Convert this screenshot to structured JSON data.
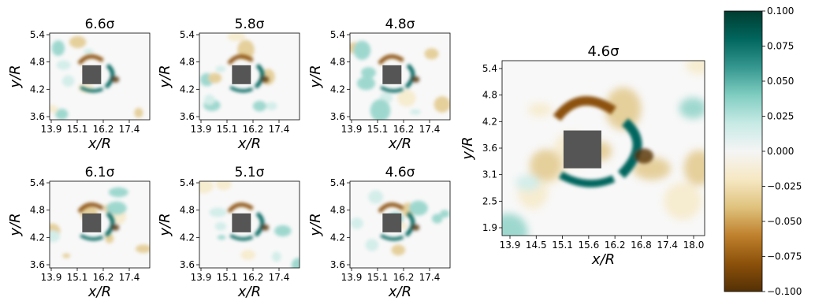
{
  "chart_data": {
    "type": "heatmap",
    "colorbar": {
      "min": -0.1,
      "max": 0.1,
      "ticks": [
        "0.100",
        "0.075",
        "0.050",
        "0.025",
        "0.000",
        "−0.025",
        "−0.050",
        "−0.075",
        "−0.100"
      ],
      "colors": [
        "#543005",
        "#8c510a",
        "#bf812d",
        "#dfc27d",
        "#f6e8c3",
        "#f5f5f5",
        "#c7eae5",
        "#80cdc1",
        "#35978f",
        "#01665e",
        "#003c30"
      ]
    },
    "small_panels": [
      {
        "title": "6.6σ",
        "xlabel": "x/R",
        "ylabel": "y/R",
        "xticks": [
          "13.9",
          "15.1",
          "16.2",
          "17.4"
        ],
        "yticks": [
          "5.4",
          "4.8",
          "4.2",
          "3.6"
        ],
        "xlim": [
          13.6,
          18.2
        ],
        "ylim": [
          3.5,
          5.5
        ]
      },
      {
        "title": "5.8σ",
        "xlabel": "x/R",
        "ylabel": "y/R",
        "xticks": [
          "13.9",
          "15.1",
          "16.2",
          "17.4"
        ],
        "yticks": [
          "5.4",
          "4.8",
          "4.2",
          "3.6"
        ],
        "xlim": [
          13.6,
          18.2
        ],
        "ylim": [
          3.5,
          5.5
        ]
      },
      {
        "title": "4.8σ",
        "xlabel": "x/R",
        "ylabel": "y/R",
        "xticks": [
          "13.9",
          "15.1",
          "16.2",
          "17.4"
        ],
        "yticks": [
          "5.4",
          "4.8",
          "4.2",
          "3.6"
        ],
        "xlim": [
          13.6,
          18.2
        ],
        "ylim": [
          3.5,
          5.5
        ]
      },
      {
        "title": "6.1σ",
        "xlabel": "x/R",
        "ylabel": "y/R",
        "xticks": [
          "13.9",
          "15.1",
          "16.2",
          "17.4"
        ],
        "yticks": [
          "5.4",
          "4.8",
          "4.2",
          "3.6"
        ],
        "xlim": [
          13.6,
          18.2
        ],
        "ylim": [
          3.5,
          5.5
        ]
      },
      {
        "title": "5.1σ",
        "xlabel": "x/R",
        "ylabel": "y/R",
        "xticks": [
          "13.9",
          "15.1",
          "16.2",
          "17.4"
        ],
        "yticks": [
          "5.4",
          "4.8",
          "4.2",
          "3.6"
        ],
        "xlim": [
          13.6,
          18.2
        ],
        "ylim": [
          3.5,
          5.5
        ]
      },
      {
        "title": "4.6σ",
        "xlabel": "x/R",
        "ylabel": "y/R",
        "xticks": [
          "13.9",
          "15.1",
          "16.2",
          "17.4"
        ],
        "yticks": [
          "5.4",
          "4.8",
          "4.2",
          "3.6"
        ],
        "xlim": [
          13.6,
          18.2
        ],
        "ylim": [
          3.5,
          5.5
        ]
      }
    ],
    "large_panel": {
      "title": "4.6σ",
      "xlabel": "x/R",
      "ylabel": "y/R",
      "xticks": [
        "13.9",
        "14.5",
        "15.1",
        "15.6",
        "16.2",
        "16.8",
        "17.4",
        "18.0"
      ],
      "yticks": [
        "5.4",
        "4.8",
        "4.2",
        "3.6",
        "3.1",
        "2.5",
        "1.9"
      ],
      "xlim": [
        13.6,
        18.2
      ],
      "ylim": [
        1.5,
        5.6
      ]
    }
  }
}
